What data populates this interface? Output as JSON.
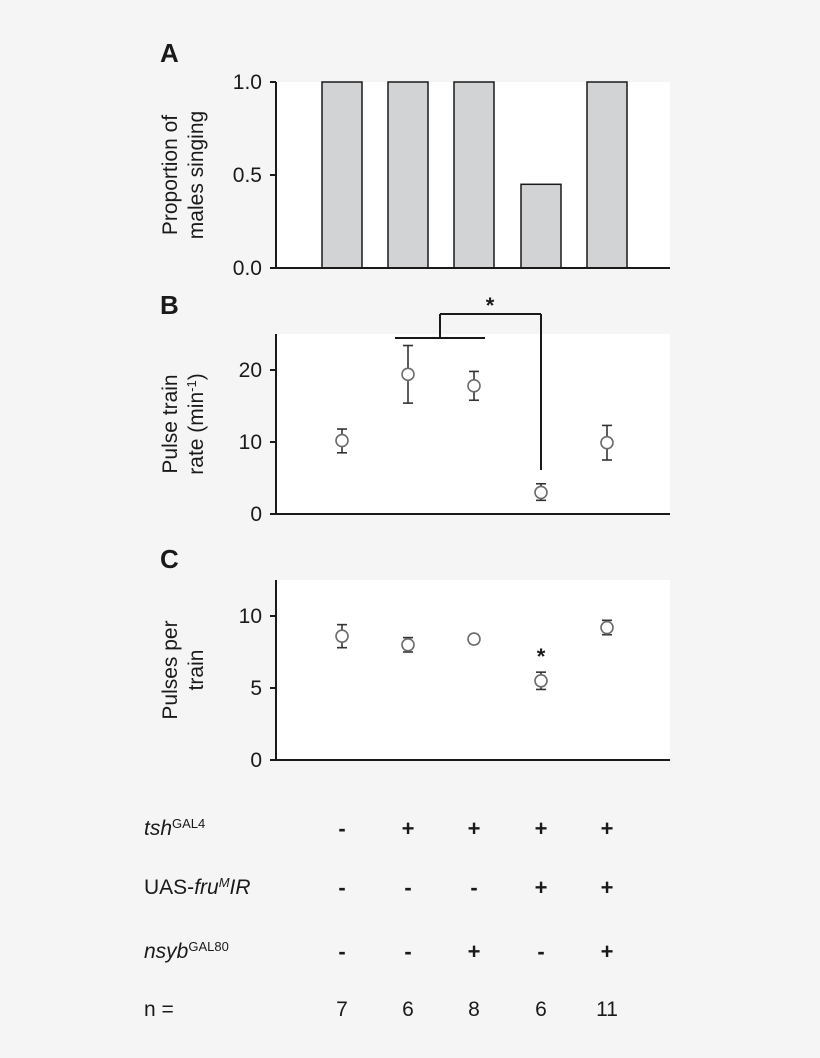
{
  "chart_data": [
    {
      "panel": "A",
      "type": "bar",
      "ylabel_lines": [
        "Proportion of",
        "males singing"
      ],
      "ylim": [
        0,
        1.0
      ],
      "yticks": [
        "0.0",
        "0.5",
        "1.0"
      ],
      "ytick_values": [
        0,
        0.5,
        1.0
      ],
      "values": [
        1.0,
        1.0,
        1.0,
        0.45,
        1.0
      ],
      "bar_color": "#d2d3d5"
    },
    {
      "panel": "B",
      "type": "scatter",
      "ylabel_lines": [
        "Pulse train",
        "rate (min-1)"
      ],
      "ylim": [
        0,
        25
      ],
      "yticks": [
        "0",
        "10",
        "20"
      ],
      "ytick_values": [
        0,
        10,
        20
      ],
      "values": [
        10.2,
        19.4,
        17.8,
        3.0,
        9.9
      ],
      "err_low": [
        8.5,
        15.4,
        15.8,
        1.9,
        7.5
      ],
      "err_high": [
        11.8,
        23.4,
        19.8,
        4.2,
        12.3
      ],
      "annotation": "*"
    },
    {
      "panel": "C",
      "type": "scatter",
      "ylabel_lines": [
        "Pulses per",
        "train"
      ],
      "ylim": [
        0,
        12.5
      ],
      "yticks": [
        "0",
        "5",
        "10"
      ],
      "ytick_values": [
        0,
        5,
        10
      ],
      "values": [
        8.6,
        8.0,
        8.4,
        5.5,
        9.2
      ],
      "err_low": [
        7.8,
        7.5,
        8.1,
        4.9,
        8.7
      ],
      "err_high": [
        9.4,
        8.5,
        8.7,
        6.1,
        9.7
      ],
      "annotation": "*"
    }
  ],
  "genotype_table": {
    "rows": [
      {
        "label_main": "tsh",
        "label_italic": "",
        "label_sup": "GAL4",
        "label_suffix": "",
        "signs": [
          "-",
          "+",
          "+",
          "+",
          "+"
        ]
      },
      {
        "label_main": "UAS-",
        "label_italic": "fru",
        "label_sup": "M",
        "label_suffix": "IR",
        "signs": [
          "-",
          "-",
          "-",
          "+",
          "+"
        ]
      },
      {
        "label_main": "nsyb",
        "label_italic": "",
        "label_sup": "GAL80",
        "label_suffix": "",
        "signs": [
          "-",
          "-",
          "+",
          "-",
          "+"
        ]
      }
    ],
    "n_label": "n =",
    "n_values": [
      "7",
      "6",
      "8",
      "6",
      "11"
    ]
  }
}
